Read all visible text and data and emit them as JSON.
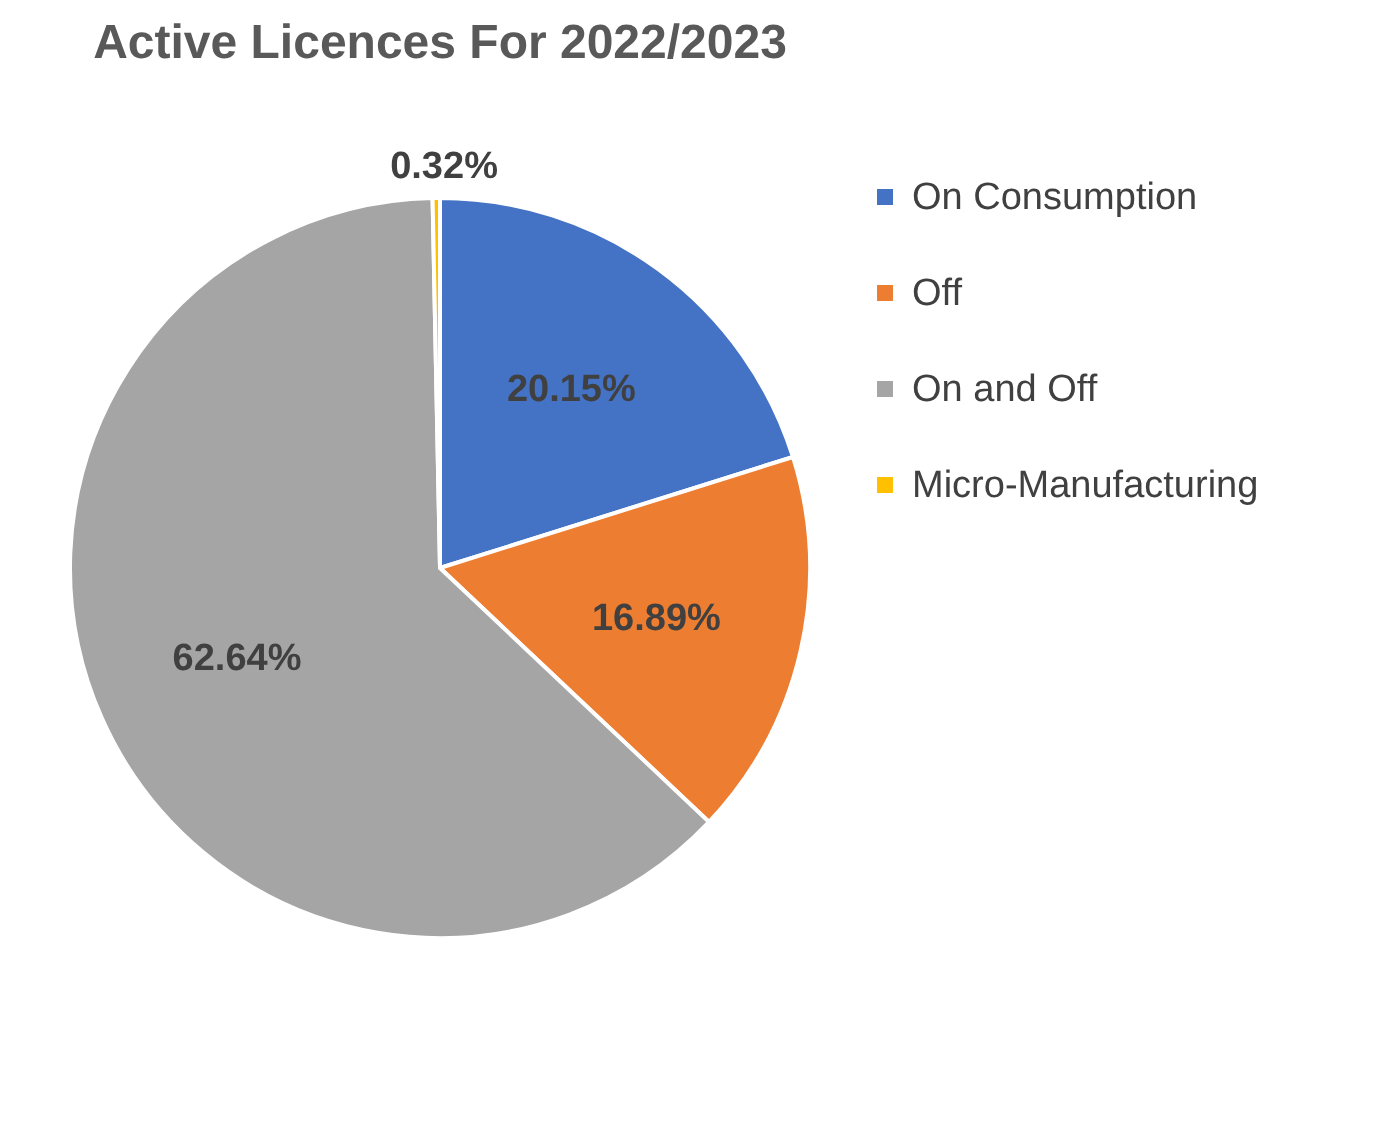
{
  "chart_data": {
    "type": "pie",
    "title": "Active Licences For 2022/2023",
    "categories": [
      "On Consumption",
      "Off",
      "On and Off",
      "Micro-Manufacturing"
    ],
    "values": [
      20.15,
      16.89,
      62.64,
      0.32
    ],
    "colors": [
      "#4472c4",
      "#ed7d31",
      "#a5a5a5",
      "#ffc000"
    ],
    "value_labels": [
      "20.15%",
      "16.89%",
      "62.64%",
      "0.32%"
    ],
    "legend": "right"
  }
}
